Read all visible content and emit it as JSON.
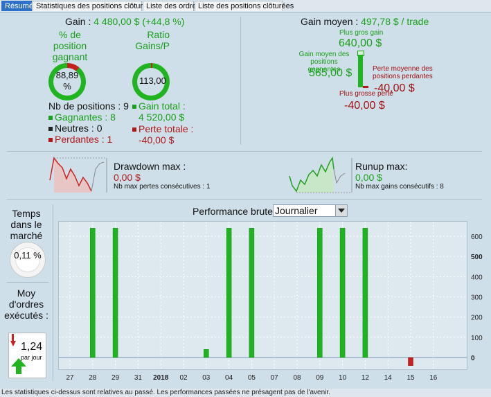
{
  "tabs": [
    {
      "label": "Résumé"
    },
    {
      "label": "Statistiques des positions clôturées"
    },
    {
      "label": "Liste des ordres"
    },
    {
      "label": "Liste des positions clôturées"
    }
  ],
  "summary": {
    "gain_label": "Gain :",
    "gain_value": "4 480,00 $",
    "gain_pct": "(+44,8 %)",
    "winning_pct_title": "% de position gagnant",
    "winning_pct_value": "88,89 %",
    "ratio_title": "Ratio Gains/P",
    "ratio_value": "113,00",
    "nb_positions": "Nb de positions : 9",
    "winning_count": "Gagnantes : 8",
    "neutral_count": "Neutres : 0",
    "losing_count": "Perdantes : 1",
    "total_gain_label": "Gain total :",
    "total_gain_value": "4 520,00 $",
    "total_loss_label": "Perte totale :",
    "total_loss_value": "-40,00 $",
    "colors": {
      "green": "#1aa01a",
      "red": "#b01818"
    }
  },
  "avg_gain": {
    "label": "Gain moyen :",
    "value": "497,78 $ / trade",
    "biggest_gain_label": "Plus gros gain",
    "biggest_gain_value": "640,00 $",
    "avg_winning_label": "Gain moyen des positions gagnantes",
    "avg_winning_value": "565,00 $",
    "avg_losing_label": "Perte moyenne des positions perdantes",
    "avg_losing_value": "-40,00 $",
    "biggest_loss_label": "Plus grosse perte",
    "biggest_loss_value": "-40,00 $"
  },
  "drawdown": {
    "title": "Drawdown max :",
    "value": "0,00 $",
    "detail": "Nb max pertes consécutives : 1"
  },
  "runup": {
    "title": "Runup max:",
    "value": "0,00 $",
    "detail": "Nb max gains consécutifs : 8"
  },
  "time_in_market": {
    "title": "Temps dans le marché",
    "value": "0,11 %"
  },
  "avg_orders": {
    "title": "Moy d'ordres exécutés :",
    "value": "1,24",
    "unit": "par jour"
  },
  "performance": {
    "title": "Performance brute",
    "select_value": "Journalier"
  },
  "chart_data": {
    "type": "bar",
    "categories": [
      "27",
      "28",
      "29",
      "31",
      "2018",
      "02",
      "03",
      "04",
      "05",
      "07",
      "08",
      "09",
      "10",
      "12",
      "14",
      "15",
      "16"
    ],
    "values": [
      0,
      640,
      640,
      0,
      0,
      0,
      40,
      640,
      640,
      0,
      0,
      640,
      640,
      640,
      0,
      -40,
      0
    ],
    "ylim": [
      -50,
      680
    ],
    "yticks": [
      "600",
      "500",
      "400",
      "300",
      "200",
      "100",
      "0"
    ],
    "ytick_values": [
      600,
      500,
      400,
      300,
      200,
      100,
      0
    ],
    "bold_ticks": [
      "500",
      "0",
      "2018"
    ],
    "colors": {
      "positive": "#1fb31f",
      "negative": "#c62020"
    }
  },
  "footer": "Les statistiques ci-dessus sont relatives au passé. Les performances passées ne présagent pas de l'avenir."
}
